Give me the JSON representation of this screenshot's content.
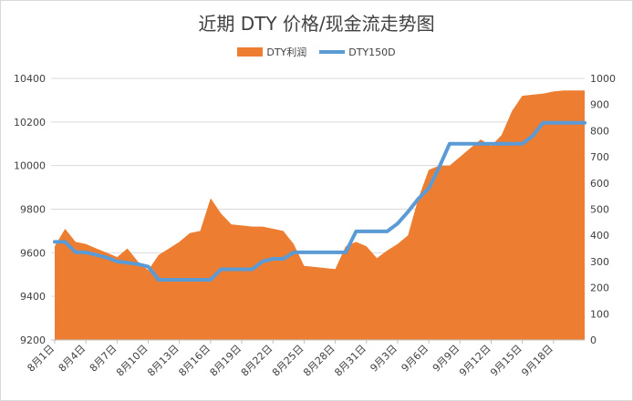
{
  "chart_data": {
    "type": "area",
    "title": "近期 DTY 价格/现金流走势图",
    "xlabel": "",
    "ylabel": "",
    "legend_position": "top",
    "grid": true,
    "x_tick_labels": [
      "8月1日",
      "8月4日",
      "8月7日",
      "8月10日",
      "8月13日",
      "8月16日",
      "8月19日",
      "8月22日",
      "8月25日",
      "8月28日",
      "8月31日",
      "9月3日",
      "9月6日",
      "9月9日",
      "9月12日",
      "9月15日",
      "9月18日"
    ],
    "y_left": {
      "min": 9200,
      "max": 10400,
      "ticks": [
        "9200",
        "9400",
        "9600",
        "9800",
        "10000",
        "10200",
        "10400"
      ]
    },
    "y_right": {
      "min": 0,
      "max": 1000,
      "ticks": [
        "0",
        "100",
        "200",
        "300",
        "400",
        "500",
        "600",
        "700",
        "800",
        "900",
        "1000"
      ]
    },
    "series": [
      {
        "name": "DTY利润",
        "type": "area",
        "axis": "left",
        "color": "#ed7d31",
        "x": [
          0,
          1,
          2,
          3,
          4,
          5,
          6,
          7,
          8,
          9,
          10,
          11,
          12,
          13,
          14,
          15,
          16,
          17,
          18,
          19,
          20,
          21,
          22,
          23,
          24,
          25,
          26,
          27,
          28,
          29,
          30,
          31,
          32,
          33,
          34,
          35,
          36,
          37,
          38,
          39,
          40,
          41,
          42,
          43,
          44,
          45,
          46,
          47,
          48,
          49,
          50,
          51
        ],
        "values": [
          9630,
          9710,
          9650,
          9640,
          9620,
          9600,
          9580,
          9620,
          9560,
          9520,
          9590,
          9620,
          9650,
          9690,
          9700,
          9850,
          9780,
          9730,
          9725,
          9720,
          9720,
          9710,
          9700,
          9640,
          9540,
          9535,
          9530,
          9525,
          9630,
          9650,
          9630,
          9575,
          9610,
          9640,
          9680,
          9850,
          9980,
          10000,
          10000,
          10040,
          10080,
          10120,
          10090,
          10140,
          10250,
          10320,
          10325,
          10330,
          10340,
          10345,
          10345,
          10345
        ]
      },
      {
        "name": "DTY150D",
        "type": "line",
        "axis": "right",
        "color": "#5b9bd5",
        "x": [
          0,
          1,
          2,
          3,
          4,
          5,
          6,
          7,
          8,
          9,
          10,
          11,
          12,
          13,
          14,
          15,
          16,
          17,
          18,
          19,
          20,
          21,
          22,
          23,
          24,
          25,
          26,
          27,
          28,
          29,
          30,
          31,
          32,
          33,
          34,
          35,
          36,
          37,
          38,
          39,
          40,
          41,
          42,
          43,
          44,
          45,
          46,
          47,
          48,
          49,
          50,
          51
        ],
        "values": [
          375,
          375,
          335,
          335,
          325,
          315,
          300,
          295,
          290,
          280,
          230,
          230,
          230,
          230,
          230,
          230,
          270,
          270,
          270,
          270,
          300,
          310,
          310,
          335,
          335,
          335,
          335,
          335,
          335,
          415,
          415,
          415,
          415,
          445,
          490,
          540,
          580,
          660,
          750,
          750,
          750,
          750,
          750,
          750,
          750,
          750,
          780,
          830,
          830,
          830,
          830,
          830
        ]
      }
    ]
  }
}
